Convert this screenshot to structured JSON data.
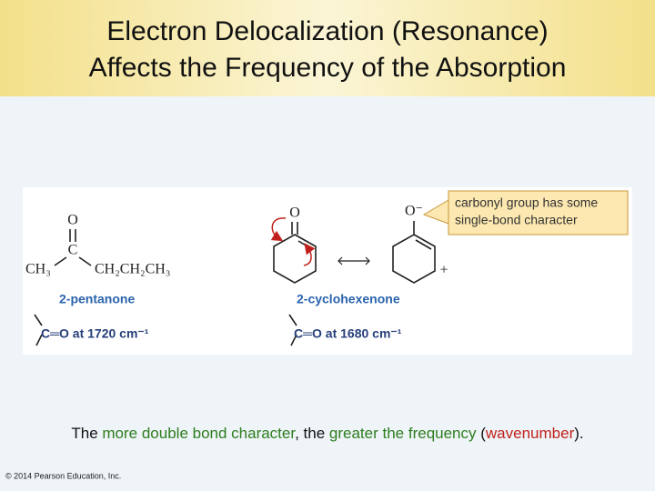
{
  "header": {
    "title_lines": [
      "Electron Delocalization (Resonance)",
      "Affects the Frequency of the Absorption"
    ]
  },
  "figure": {
    "pentanone": {
      "oxygen": "O",
      "carbon": "C",
      "left_group": "CH₃",
      "right_group": "CH₂CH₂CH₃",
      "name": "2-pentanone",
      "stretch": "C═O at 1720 cm⁻¹"
    },
    "cyclohexenone": {
      "oxygen": "O",
      "oxygen_anion": "O⁻",
      "plus": "+",
      "name": "2-cyclohexenone",
      "stretch": "C═O at 1680 cm⁻¹"
    },
    "callout": [
      "carbonyl group has some",
      "single-bond character"
    ]
  },
  "caption": {
    "segments": [
      {
        "text": "The ",
        "color": "#111111"
      },
      {
        "text": "more double bond character",
        "color": "#2e7d1f"
      },
      {
        "text": ", the ",
        "color": "#111111"
      },
      {
        "text": "greater the frequency",
        "color": "#2e7d1f"
      },
      {
        "text": " (",
        "color": "#111111"
      },
      {
        "text": "wavenumber",
        "color": "#c0201c"
      },
      {
        "text": ").",
        "color": "#111111"
      }
    ]
  },
  "footer": {
    "copyright": "© 2014 Pearson Education, Inc."
  }
}
